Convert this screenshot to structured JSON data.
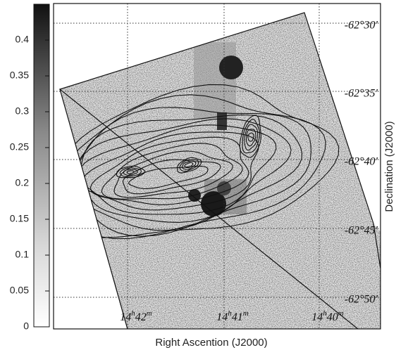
{
  "chart_data": {
    "type": "image",
    "xlabel": "Right Ascention (J2000)",
    "ylabel": "Declination (J2000)",
    "colorbar": {
      "ylim": [
        0,
        0.45
      ],
      "yticks": [
        0,
        0.05,
        0.1,
        0.15,
        0.2,
        0.25,
        0.3,
        0.35,
        0.4
      ]
    },
    "ra_labels": [
      [
        "14",
        "h",
        "42",
        "m"
      ],
      [
        "14",
        "h",
        "41",
        "m"
      ],
      [
        "14",
        "h",
        "40",
        "m"
      ]
    ],
    "dec_labels": [
      "-62°30′",
      "-62°35′",
      "-62°40′",
      "-62°45′",
      "-62°50′"
    ]
  }
}
